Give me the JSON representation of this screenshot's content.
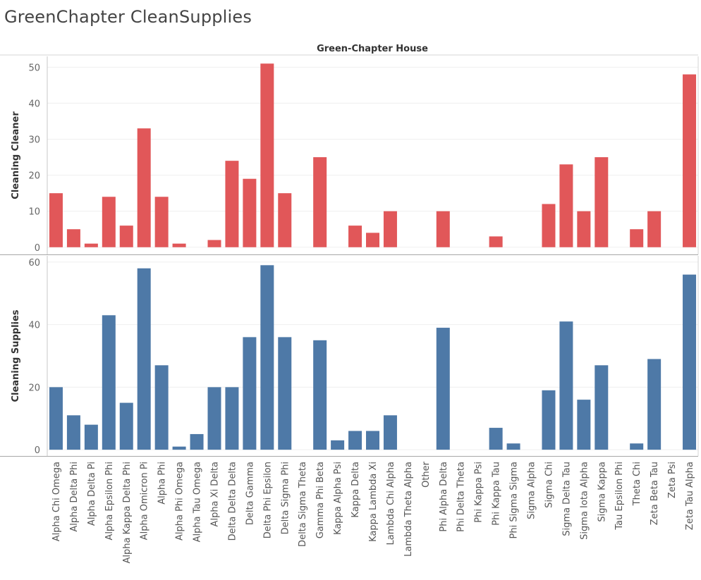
{
  "title": "GreenChapter CleanSupplies",
  "chart_data": {
    "type": "bar",
    "column_header": "Green-Chapter House",
    "categories": [
      "Alpha Chi Omega",
      "Alpha Delta Phi",
      "Alpha Delta Pi",
      "Alpha Epsilon Phi",
      "Alpha Kappa Delta Phi",
      "Alpha Omicron Pi",
      "Alpha Phi",
      "Alpha Phi Omega",
      "Alpha Tau Omega",
      "Alpha Xi Delta",
      "Delta Delta Delta",
      "Delta Gamma",
      "Delta Phi Epsilon",
      "Delta Sigma Phi",
      "Delta Sigma Theta",
      "Gamma Phi Beta",
      "Kappa Alpha Psi",
      "Kappa Delta",
      "Kappa Lambda Xi",
      "Lambda Chi Alpha",
      "Lambda Theta Alpha",
      "Other",
      "Phi Alpha Delta",
      "Phi Delta Theta",
      "Phi Kappa Psi",
      "Phi Kappa Tau",
      "Phi Sigma Sigma",
      "Sigma Alpha",
      "Sigma Chi",
      "Sigma Delta Tau",
      "Sigma Iota Alpha",
      "Sigma Kappa",
      "Tau Epsilon Phi",
      "Theta Chi",
      "Zeta Beta Tau",
      "Zeta Psi",
      "Zeta Tau Alpha"
    ],
    "series": [
      {
        "name": "Cleaning Cleaner",
        "color": "#e15759",
        "ylim": [
          -2,
          53
        ],
        "ticks": [
          0,
          10,
          20,
          30,
          40,
          50
        ],
        "values": [
          15,
          5,
          1,
          14,
          6,
          33,
          14,
          1,
          0,
          2,
          24,
          19,
          51,
          15,
          0,
          25,
          0,
          6,
          4,
          10,
          0,
          0,
          10,
          0,
          0,
          3,
          0,
          0,
          12,
          23,
          10,
          25,
          0,
          5,
          10,
          0,
          48
        ]
      },
      {
        "name": "Cleaning Supplies",
        "color": "#4e79a7",
        "ylim": [
          -2,
          62
        ],
        "ticks": [
          0,
          20,
          40,
          60
        ],
        "values": [
          20,
          11,
          8,
          43,
          15,
          58,
          27,
          1,
          5,
          20,
          20,
          36,
          59,
          36,
          0,
          35,
          3,
          6,
          6,
          11,
          0,
          0,
          39,
          0,
          0,
          7,
          2,
          0,
          19,
          41,
          16,
          27,
          0,
          2,
          29,
          0,
          56
        ]
      }
    ],
    "grid": true,
    "xlabel": "",
    "legend": "none"
  }
}
